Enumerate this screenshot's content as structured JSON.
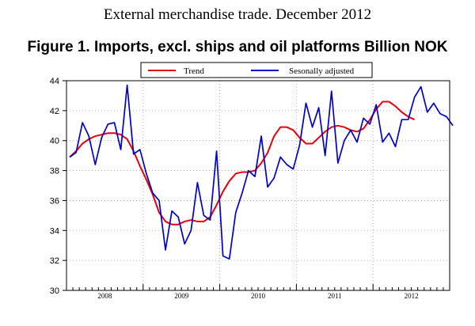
{
  "page": {
    "supertitle": "External merchandise trade. December 2012",
    "title": "Figure 1. Imports, excl. ships and oil platforms Billion NOK"
  },
  "chart_data": {
    "type": "line",
    "title": "Figure 1. Imports, excl. ships and oil platforms Billion NOK",
    "xlabel": "",
    "ylabel": "",
    "ylim": [
      30,
      44
    ],
    "yticks": [
      30,
      32,
      34,
      36,
      38,
      40,
      42,
      44
    ],
    "years": [
      "2008",
      "2009",
      "2010",
      "2011",
      "2012"
    ],
    "xlim_months": [
      "2008-01",
      "2012-12"
    ],
    "grid": true,
    "legend_position": "top",
    "series": [
      {
        "name": "Trend",
        "color": "#e8000b",
        "values": [
          38.9,
          39.3,
          39.8,
          40.1,
          40.3,
          40.4,
          40.5,
          40.5,
          40.4,
          40.1,
          39.3,
          38.3,
          37.4,
          36.4,
          35.2,
          34.6,
          34.4,
          34.4,
          34.6,
          34.7,
          34.6,
          34.6,
          34.9,
          35.7,
          36.6,
          37.3,
          37.8,
          37.9,
          37.9,
          38.0,
          38.5,
          39.2,
          40.3,
          40.9,
          40.9,
          40.7,
          40.2,
          39.8,
          39.8,
          40.2,
          40.6,
          40.9,
          41.0,
          40.9,
          40.7,
          40.6,
          40.8,
          41.4,
          42.1,
          42.6,
          42.6,
          42.3,
          41.9,
          41.6,
          41.4
        ]
      },
      {
        "name": "Sesonally adjusted",
        "color": "#0000cd",
        "values": [
          38.9,
          39.2,
          41.2,
          40.3,
          38.4,
          40.2,
          41.1,
          41.2,
          39.4,
          43.7,
          39.1,
          39.4,
          37.8,
          36.5,
          36.0,
          32.7,
          35.3,
          34.9,
          33.1,
          34.0,
          37.2,
          35.0,
          34.7,
          39.3,
          32.3,
          32.1,
          35.2,
          36.5,
          38.0,
          37.6,
          40.3,
          36.9,
          37.5,
          38.9,
          38.4,
          38.1,
          39.7,
          42.5,
          40.9,
          42.2,
          39.0,
          43.3,
          38.5,
          40.0,
          40.7,
          39.9,
          41.5,
          41.1,
          42.4,
          39.9,
          40.5,
          39.6,
          41.4,
          41.4,
          42.9,
          43.6,
          41.9,
          42.5,
          41.8,
          41.6,
          41.0
        ]
      }
    ]
  }
}
